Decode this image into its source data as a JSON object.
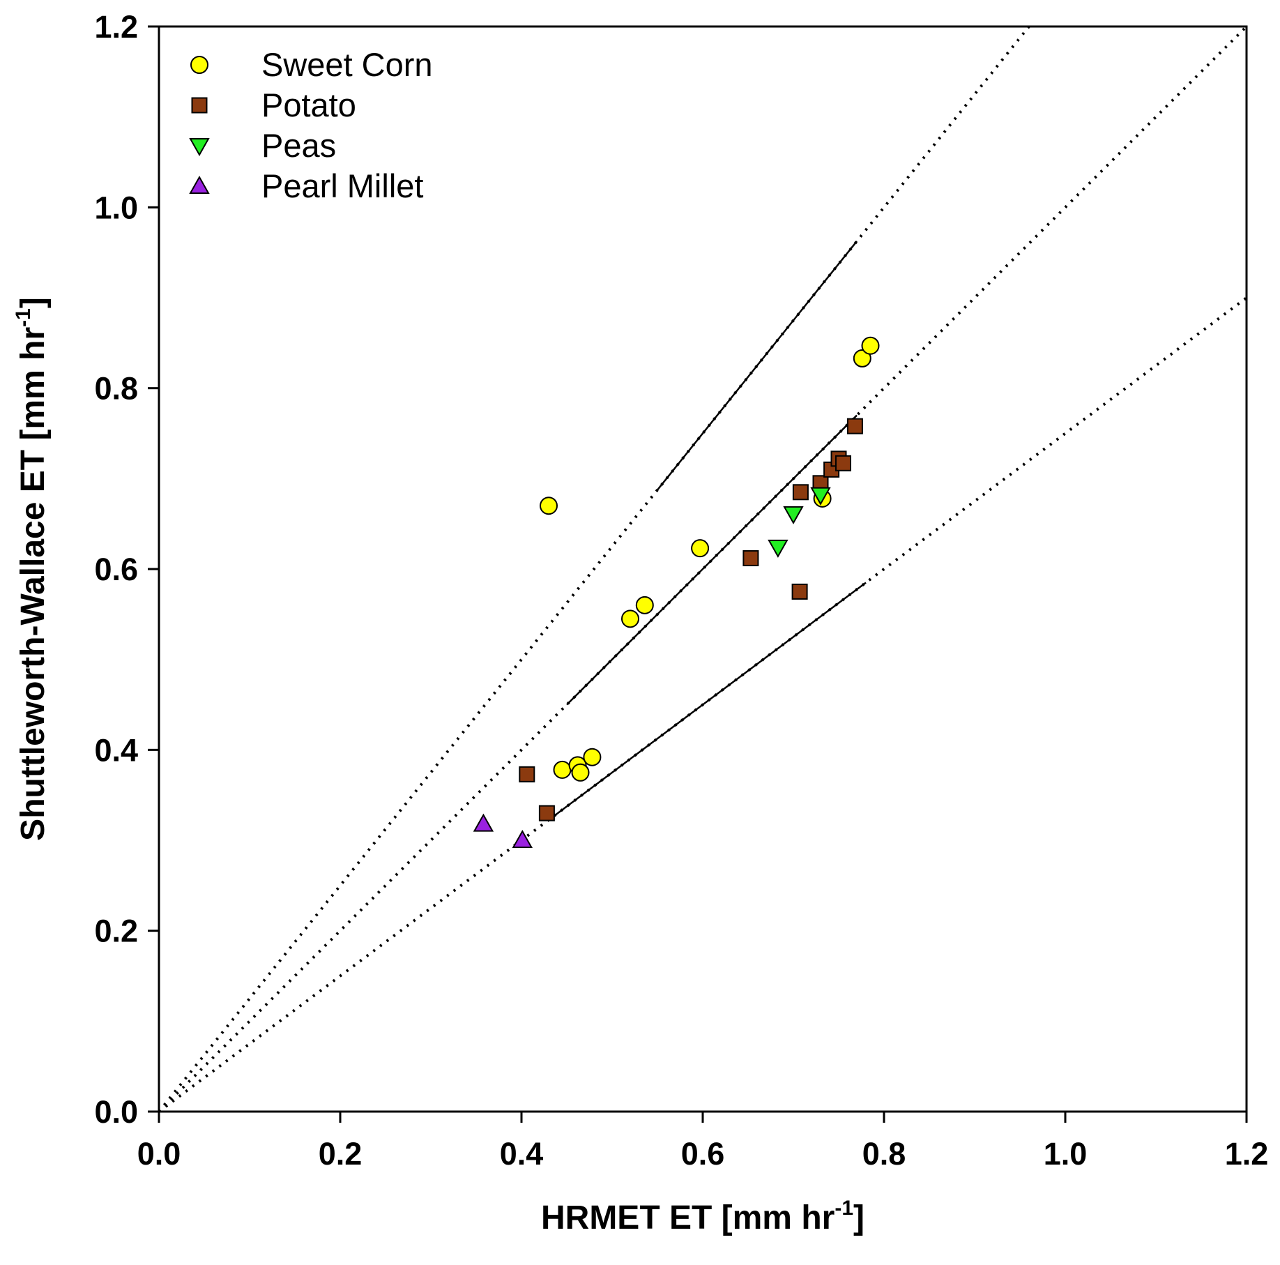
{
  "chart_data": {
    "type": "scatter",
    "xlabel": "HRMET ET [mm hr⁻¹]",
    "ylabel": "Shuttleworth-Wallace ET [mm hr⁻¹]",
    "xlabel_parts": {
      "main": "HRMET ET [mm hr",
      "sup": "-1",
      "end": "]"
    },
    "ylabel_parts": {
      "main": "Shuttleworth-Wallace ET [mm hr",
      "sup": "-1",
      "end": "]"
    },
    "xlim": [
      0,
      1.2
    ],
    "ylim": [
      0,
      1.2
    ],
    "xticks": [
      "0.0",
      "0.2",
      "0.4",
      "0.6",
      "0.8",
      "1.0",
      "1.2"
    ],
    "yticks": [
      "0.0",
      "0.2",
      "0.4",
      "0.6",
      "0.8",
      "1.0",
      "1.2"
    ],
    "grid": false,
    "legend_position": "top-left",
    "series": [
      {
        "name": "Sweet Corn",
        "marker": "circle",
        "color": "#FFFF00",
        "points": [
          [
            0.43,
            0.67
          ],
          [
            0.597,
            0.623
          ],
          [
            0.52,
            0.545
          ],
          [
            0.536,
            0.56
          ],
          [
            0.445,
            0.378
          ],
          [
            0.462,
            0.383
          ],
          [
            0.465,
            0.375
          ],
          [
            0.478,
            0.392
          ],
          [
            0.732,
            0.678
          ],
          [
            0.776,
            0.833
          ],
          [
            0.785,
            0.847
          ]
        ]
      },
      {
        "name": "Potato",
        "marker": "square",
        "color": "#8B3A0F",
        "points": [
          [
            0.406,
            0.373
          ],
          [
            0.428,
            0.33
          ],
          [
            0.653,
            0.612
          ],
          [
            0.707,
            0.575
          ],
          [
            0.708,
            0.685
          ],
          [
            0.73,
            0.695
          ],
          [
            0.742,
            0.71
          ],
          [
            0.75,
            0.722
          ],
          [
            0.755,
            0.717
          ],
          [
            0.768,
            0.758
          ]
        ]
      },
      {
        "name": "Peas",
        "marker": "triangle-down",
        "color": "#22EE22",
        "points": [
          [
            0.683,
            0.624
          ],
          [
            0.7,
            0.661
          ],
          [
            0.73,
            0.682
          ]
        ]
      },
      {
        "name": "Pearl Millet",
        "marker": "triangle-up",
        "color": "#9A22E0",
        "points": [
          [
            0.358,
            0.318
          ],
          [
            0.401,
            0.3
          ]
        ]
      }
    ],
    "reference_lines": [
      {
        "name": "upper",
        "slope": 1.25,
        "solid_range": [
          0.55,
          0.77
        ]
      },
      {
        "name": "center",
        "slope": 1.0,
        "solid_range": [
          0.45,
          0.77
        ]
      },
      {
        "name": "lower",
        "slope": 0.75,
        "solid_range": [
          0.43,
          0.78
        ]
      }
    ]
  }
}
